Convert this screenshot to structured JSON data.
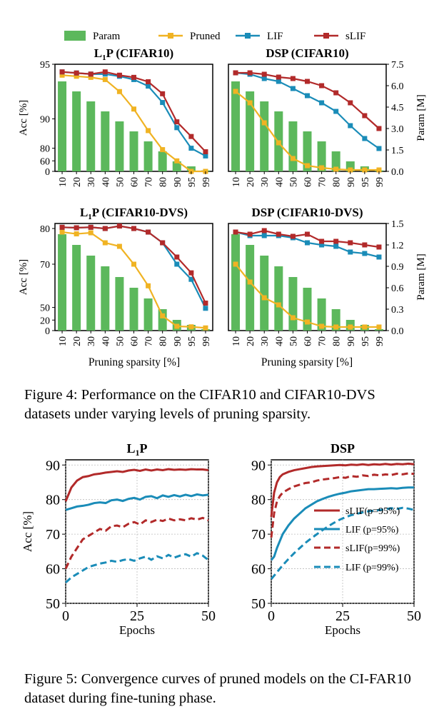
{
  "legend": {
    "items": [
      {
        "label": "Param",
        "kind": "bar",
        "color": "#5cb85c"
      },
      {
        "label": "Pruned",
        "kind": "line",
        "color": "#f0b323"
      },
      {
        "label": "LIF",
        "kind": "line",
        "color": "#1a8cb8"
      },
      {
        "label": "sLIF",
        "kind": "line",
        "color": "#b22a2a"
      }
    ]
  },
  "figure4": {
    "caption": "Figure 4: Performance on the CIFAR10 and CIFAR10-DVS datasets under varying levels of pruning sparsity.",
    "xlabel": "Pruning sparsity [%]",
    "ylabel_left": "Acc [%]",
    "ylabel_right": "Param [M]",
    "categories": [
      "10",
      "20",
      "30",
      "40",
      "50",
      "60",
      "70",
      "80",
      "90",
      "95",
      "99"
    ]
  },
  "figure5": {
    "caption": "Figure 5: Convergence curves of pruned models on the CI-FAR10 dataset during fine-tuning phase.",
    "xlabel": "Epochs",
    "ylabel": "Acc [%]",
    "legend": [
      {
        "label": "sLIF(p=95%)",
        "color": "#b22a2a",
        "dash": false
      },
      {
        "label": "LIF  (p=95%)",
        "color": "#1a8cb8",
        "dash": false
      },
      {
        "label": "sLIF(p=99%)",
        "color": "#b22a2a",
        "dash": true
      },
      {
        "label": "LIF  (p=99%)",
        "color": "#1a8cb8",
        "dash": true
      }
    ]
  },
  "chart_data": [
    {
      "type": "bar+line",
      "title": "L1P (CIFAR10)",
      "categories": [
        "10",
        "20",
        "30",
        "40",
        "50",
        "60",
        "70",
        "80",
        "90",
        "95",
        "99"
      ],
      "ylim": [
        0,
        95
      ],
      "yticks_left": [
        "0",
        "60",
        "80",
        "90",
        "95"
      ],
      "y2lim": [
        0,
        7.5
      ],
      "yticks_right": [],
      "bars": {
        "name": "Param",
        "values": [
          6.3,
          5.6,
          4.9,
          4.2,
          3.5,
          2.8,
          2.1,
          1.4,
          0.7,
          0.35,
          0.07
        ]
      },
      "series": [
        {
          "name": "Pruned",
          "values": [
            94.0,
            93.9,
            93.8,
            93.6,
            92.5,
            90.9,
            86.0,
            78.0,
            62.0,
            60.0,
            57.0
          ]
        },
        {
          "name": "LIF",
          "values": [
            94.3,
            94.2,
            94.1,
            94.1,
            93.9,
            93.6,
            93.0,
            91.5,
            87.0,
            80.0,
            69.0
          ]
        },
        {
          "name": "sLIF",
          "values": [
            94.3,
            94.2,
            94.1,
            94.3,
            94.0,
            93.8,
            93.4,
            92.3,
            89.0,
            84.0,
            75.0
          ]
        }
      ]
    },
    {
      "type": "bar+line",
      "title": "DSP (CIFAR10)",
      "categories": [
        "10",
        "20",
        "30",
        "40",
        "50",
        "60",
        "70",
        "80",
        "90",
        "95",
        "99"
      ],
      "ylim": [
        0,
        95
      ],
      "yticks_left": [],
      "y2lim": [
        0,
        7.5
      ],
      "yticks_right": [
        "0.0",
        "1.5",
        "3.0",
        "4.5",
        "6.0",
        "7.5"
      ],
      "bars": {
        "name": "Param",
        "values": [
          6.3,
          5.6,
          4.9,
          4.2,
          3.5,
          2.8,
          2.1,
          1.4,
          0.7,
          0.35,
          0.07
        ]
      },
      "series": [
        {
          "name": "Pruned",
          "values": [
            5.6,
            4.8,
            3.4,
            2.0,
            0.9,
            0.4,
            0.25,
            0.15,
            0.1,
            0.1,
            0.1
          ]
        },
        {
          "name": "LIF",
          "values": [
            6.9,
            6.8,
            6.5,
            6.3,
            5.8,
            5.3,
            4.8,
            4.2,
            3.2,
            2.3,
            1.6
          ]
        },
        {
          "name": "sLIF",
          "values": [
            6.9,
            6.9,
            6.8,
            6.6,
            6.5,
            6.3,
            6.0,
            5.5,
            4.8,
            3.9,
            3.0
          ]
        }
      ],
      "series_axis": "right"
    },
    {
      "type": "bar+line",
      "title": "L1P (CIFAR10-DVS)",
      "categories": [
        "10",
        "20",
        "30",
        "40",
        "50",
        "60",
        "70",
        "80",
        "90",
        "95",
        "99"
      ],
      "ylim": [
        0,
        82
      ],
      "yticks_left": [
        "0",
        "20",
        "50",
        "70",
        "80"
      ],
      "y2lim": [
        0,
        1.5
      ],
      "yticks_right": [],
      "bars": {
        "name": "Param",
        "values": [
          1.35,
          1.2,
          1.05,
          0.9,
          0.75,
          0.6,
          0.45,
          0.3,
          0.15,
          0.08,
          0.02
        ]
      },
      "series": [
        {
          "name": "Pruned",
          "values": [
            79.0,
            78.5,
            78.8,
            76.0,
            75.0,
            70.0,
            60.0,
            30.0,
            8.0,
            7.0,
            5.0
          ]
        },
        {
          "name": "LIF",
          "values": [
            80.5,
            80.3,
            80.5,
            80.0,
            81.0,
            80.0,
            79.0,
            76.0,
            70.0,
            63.0,
            48.0
          ]
        },
        {
          "name": "sLIF",
          "values": [
            80.5,
            80.3,
            80.5,
            80.0,
            81.0,
            80.0,
            79.0,
            76.0,
            72.0,
            66.0,
            52.0
          ]
        }
      ]
    },
    {
      "type": "bar+line",
      "title": "DSP (CIFAR10-DVS)",
      "categories": [
        "10",
        "20",
        "30",
        "40",
        "50",
        "60",
        "70",
        "80",
        "90",
        "95",
        "99"
      ],
      "ylim": [
        0,
        82
      ],
      "yticks_left": [],
      "y2lim": [
        0,
        1.5
      ],
      "yticks_right": [
        "0.0",
        "0.3",
        "0.6",
        "0.9",
        "1.2",
        "1.5"
      ],
      "bars": {
        "name": "Param",
        "values": [
          1.35,
          1.2,
          1.05,
          0.9,
          0.75,
          0.6,
          0.45,
          0.3,
          0.15,
          0.08,
          0.02
        ]
      },
      "series": [
        {
          "name": "Pruned",
          "values": [
            0.93,
            0.68,
            0.46,
            0.36,
            0.18,
            0.12,
            0.06,
            0.05,
            0.05,
            0.05,
            0.05
          ]
        },
        {
          "name": "LIF",
          "values": [
            1.38,
            1.33,
            1.33,
            1.33,
            1.3,
            1.23,
            1.2,
            1.18,
            1.1,
            1.08,
            1.03
          ]
        },
        {
          "name": "sLIF",
          "values": [
            1.38,
            1.35,
            1.4,
            1.35,
            1.32,
            1.35,
            1.25,
            1.25,
            1.23,
            1.2,
            1.17
          ]
        }
      ],
      "series_axis": "right"
    },
    {
      "type": "line",
      "title": "L1P",
      "xlabel": "Epochs",
      "ylabel": "Acc [%]",
      "xlim": [
        0,
        50
      ],
      "ylim": [
        50,
        91.5
      ],
      "xticks": [
        "0",
        "25",
        "50"
      ],
      "yticks": [
        "50",
        "60",
        "70",
        "80",
        "90"
      ],
      "grid": true,
      "series": [
        {
          "name": "sLIF(p=95%)",
          "x": [
            0,
            2,
            4,
            6,
            8,
            10,
            12,
            14,
            16,
            18,
            20,
            22,
            24,
            26,
            28,
            30,
            32,
            34,
            36,
            38,
            40,
            42,
            44,
            46,
            48,
            50
          ],
          "values": [
            79.5,
            83.5,
            85.5,
            86.5,
            86.8,
            87.3,
            87.5,
            87.8,
            88.0,
            88.2,
            88.0,
            88.4,
            88.6,
            88.3,
            88.7,
            88.4,
            88.7,
            88.5,
            88.8,
            88.6,
            88.7,
            88.6,
            88.8,
            88.7,
            88.7,
            88.5
          ]
        },
        {
          "name": "LIF  (p=95%)",
          "x": [
            0,
            2,
            4,
            6,
            8,
            10,
            12,
            14,
            16,
            18,
            20,
            22,
            24,
            26,
            28,
            30,
            32,
            34,
            36,
            38,
            40,
            42,
            44,
            46,
            48,
            50
          ],
          "values": [
            77.0,
            77.5,
            78.0,
            78.2,
            78.5,
            79.0,
            79.2,
            79.0,
            79.8,
            80.0,
            79.6,
            80.2,
            80.5,
            80.0,
            80.8,
            81.0,
            80.4,
            81.2,
            80.8,
            81.3,
            80.9,
            81.4,
            81.0,
            81.5,
            81.2,
            81.4
          ]
        },
        {
          "name": "sLIF(p=99%)",
          "x": [
            0,
            2,
            4,
            6,
            8,
            10,
            12,
            14,
            16,
            18,
            20,
            22,
            24,
            26,
            28,
            30,
            32,
            34,
            36,
            38,
            40,
            42,
            44,
            46,
            48,
            50
          ],
          "values": [
            60.0,
            63.5,
            66.0,
            68.5,
            69.5,
            70.5,
            71.5,
            71.0,
            72.3,
            72.5,
            72.0,
            73.0,
            73.5,
            72.8,
            74.0,
            73.5,
            74.2,
            73.8,
            74.5,
            74.0,
            74.3,
            74.0,
            74.6,
            74.2,
            74.7,
            74.0
          ]
        },
        {
          "name": "LIF  (p=99%)",
          "x": [
            0,
            2,
            4,
            6,
            8,
            10,
            12,
            14,
            16,
            18,
            20,
            22,
            24,
            26,
            28,
            30,
            32,
            34,
            36,
            38,
            40,
            42,
            44,
            46,
            48,
            50
          ],
          "values": [
            56.0,
            57.5,
            58.5,
            59.5,
            60.5,
            61.0,
            61.5,
            61.8,
            62.3,
            62.0,
            62.5,
            62.8,
            62.3,
            63.0,
            63.5,
            62.6,
            63.6,
            63.0,
            64.0,
            63.2,
            63.8,
            64.2,
            63.5,
            64.5,
            63.8,
            62.5
          ]
        }
      ]
    },
    {
      "type": "line",
      "title": "DSP",
      "xlabel": "Epochs",
      "ylabel": "",
      "xlim": [
        0,
        50
      ],
      "ylim": [
        50,
        91.5
      ],
      "xticks": [
        "0",
        "25",
        "50"
      ],
      "yticks": [
        "50",
        "60",
        "70",
        "80",
        "90"
      ],
      "grid": true,
      "series": [
        {
          "name": "sLIF(p=95%)",
          "x": [
            0,
            1,
            2,
            3,
            4,
            6,
            8,
            10,
            12,
            14,
            16,
            18,
            20,
            22,
            24,
            26,
            28,
            30,
            32,
            34,
            36,
            38,
            40,
            42,
            44,
            46,
            48,
            50
          ],
          "values": [
            75.0,
            82.0,
            85.0,
            86.5,
            87.3,
            88.0,
            88.5,
            88.8,
            89.1,
            89.4,
            89.6,
            89.7,
            89.8,
            89.9,
            90.0,
            89.9,
            90.1,
            90.0,
            90.2,
            90.0,
            90.2,
            90.1,
            90.3,
            90.1,
            90.3,
            90.2,
            90.4,
            90.2
          ]
        },
        {
          "name": "LIF  (p=95%)",
          "x": [
            0,
            1,
            2,
            3,
            4,
            6,
            8,
            10,
            12,
            14,
            16,
            18,
            20,
            22,
            24,
            26,
            28,
            30,
            32,
            34,
            36,
            38,
            40,
            42,
            44,
            46,
            48,
            50
          ],
          "values": [
            62.5,
            63.5,
            66.0,
            68.0,
            70.0,
            72.5,
            74.5,
            76.0,
            77.5,
            78.5,
            79.5,
            80.2,
            80.8,
            81.3,
            81.7,
            82.0,
            82.4,
            82.6,
            82.8,
            83.0,
            83.0,
            83.1,
            83.2,
            83.3,
            83.2,
            83.4,
            83.5,
            83.5
          ]
        },
        {
          "name": "sLIF(p=99%)",
          "x": [
            0,
            1,
            2,
            3,
            4,
            6,
            8,
            10,
            12,
            14,
            16,
            18,
            20,
            22,
            24,
            26,
            28,
            30,
            32,
            34,
            36,
            38,
            40,
            42,
            44,
            46,
            48,
            50
          ],
          "values": [
            69.0,
            76.0,
            79.5,
            81.0,
            82.0,
            83.0,
            83.8,
            84.3,
            84.8,
            85.0,
            85.5,
            85.8,
            86.0,
            86.2,
            86.5,
            86.3,
            86.8,
            86.6,
            87.0,
            86.8,
            87.2,
            87.0,
            87.3,
            87.1,
            87.5,
            87.3,
            87.6,
            87.4
          ]
        },
        {
          "name": "LIF  (p=99%)",
          "x": [
            0,
            1,
            2,
            3,
            4,
            6,
            8,
            10,
            12,
            14,
            16,
            18,
            20,
            22,
            24,
            26,
            28,
            30,
            32,
            34,
            36,
            38,
            40,
            42,
            44,
            46,
            48,
            50
          ],
          "values": [
            57.0,
            58.0,
            59.0,
            60.0,
            61.0,
            62.8,
            64.5,
            66.0,
            67.5,
            68.8,
            70.0,
            71.2,
            72.3,
            73.3,
            74.2,
            74.9,
            75.5,
            75.9,
            76.3,
            76.6,
            76.8,
            77.0,
            77.2,
            77.5,
            77.3,
            77.6,
            77.4,
            77.0
          ]
        }
      ]
    }
  ]
}
